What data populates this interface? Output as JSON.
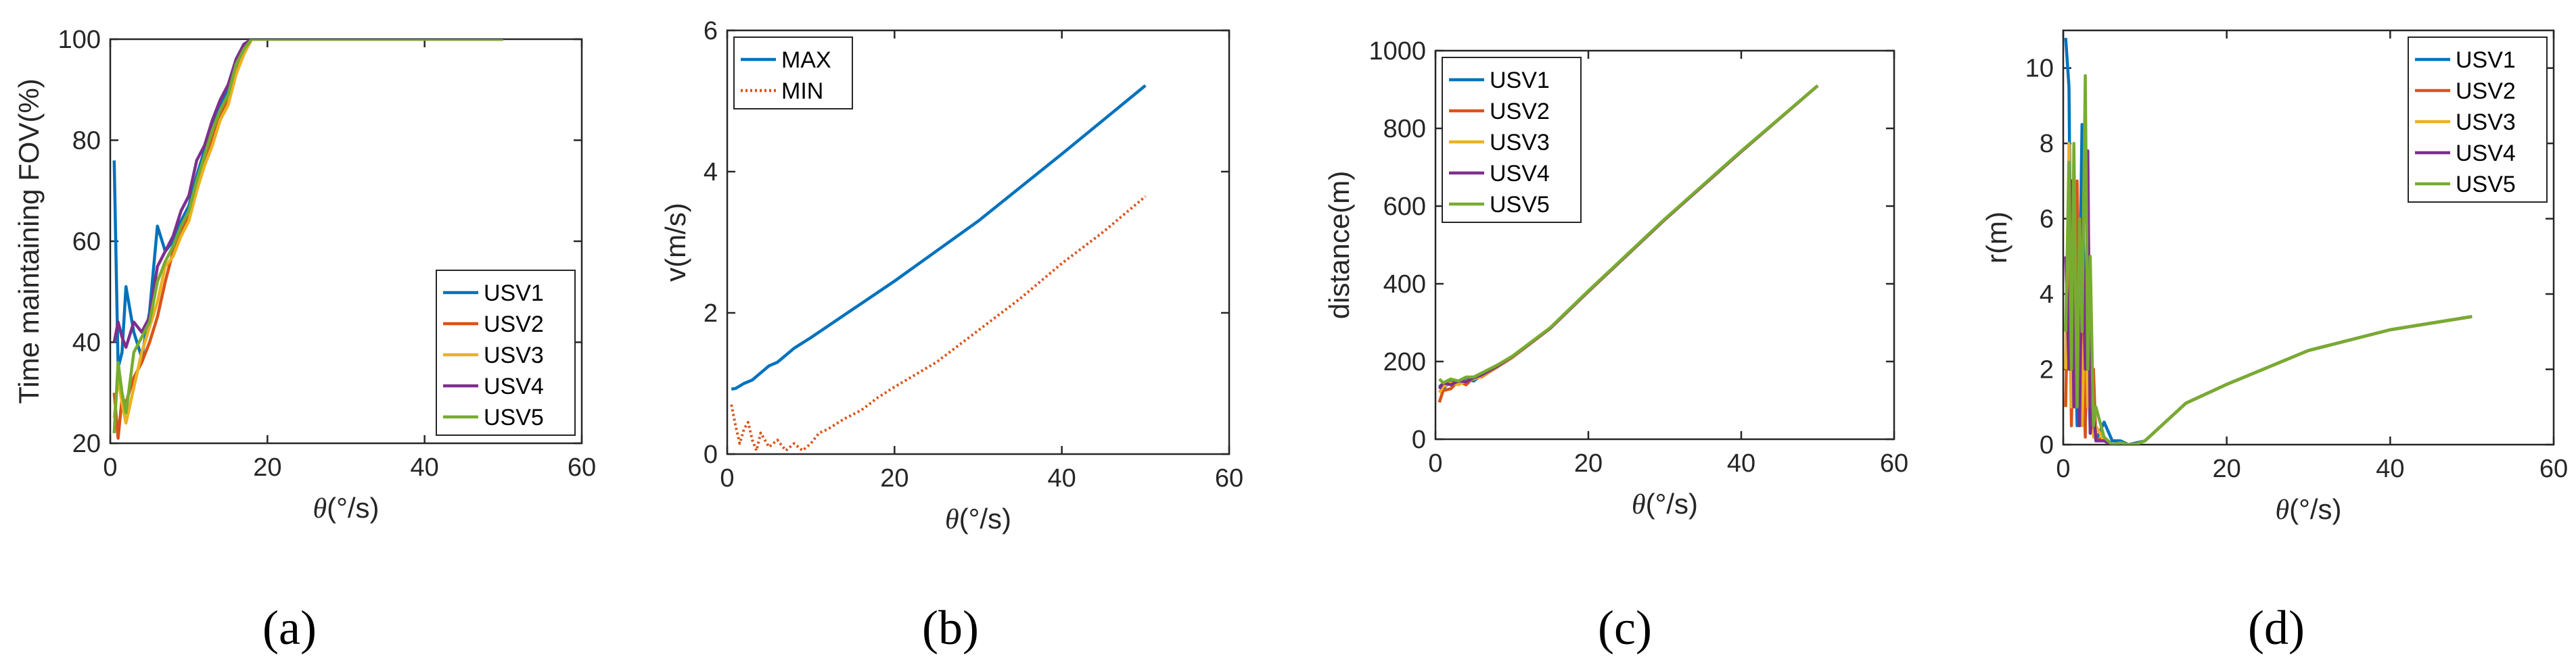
{
  "colors": {
    "USV1": "#0072BD",
    "USV2": "#D95319",
    "USV3": "#EDB120",
    "USV4": "#7E2F8E",
    "USV5": "#77AC30",
    "MAX": "#0072BD",
    "MIN": "#D95319"
  },
  "chart_data": [
    {
      "type": "line",
      "panel_label": "(a)",
      "xlabel_var": "θ",
      "xlabel_unit": "(°/s)",
      "ylabel": "Time maintaining FOV(%)",
      "xlim": [
        0,
        60
      ],
      "ylim": [
        20,
        100
      ],
      "xticks": [
        0,
        20,
        40,
        60
      ],
      "yticks": [
        20,
        40,
        60,
        80,
        100
      ],
      "legend_position": "bottom-right",
      "series": [
        {
          "name": "USV1",
          "color_key": "USV1",
          "x": [
            0.5,
            1,
            1.5,
            2,
            3,
            4,
            5,
            6,
            7,
            8,
            9,
            10,
            11,
            12,
            13,
            14,
            15,
            16,
            17,
            18,
            20,
            30,
            40,
            50
          ],
          "y": [
            76,
            35,
            38,
            51,
            42,
            37,
            46,
            63,
            58,
            60,
            64,
            67,
            73,
            78,
            83,
            87,
            90,
            96,
            99,
            100,
            100,
            100,
            100,
            100
          ]
        },
        {
          "name": "USV2",
          "color_key": "USV2",
          "x": [
            0.5,
            1,
            1.5,
            2,
            3,
            4,
            5,
            6,
            7,
            8,
            9,
            10,
            11,
            12,
            13,
            14,
            15,
            16,
            17,
            18,
            20,
            30,
            40,
            50
          ],
          "y": [
            30,
            21,
            29,
            28,
            33,
            36,
            40,
            45,
            52,
            58,
            62,
            65,
            71,
            76,
            80,
            85,
            88,
            94,
            98,
            100,
            100,
            100,
            100,
            100
          ]
        },
        {
          "name": "USV3",
          "color_key": "USV3",
          "x": [
            0.5,
            1,
            1.5,
            2,
            3,
            4,
            5,
            6,
            7,
            8,
            9,
            10,
            11,
            12,
            13,
            14,
            15,
            16,
            17,
            18,
            20,
            30,
            40,
            50
          ],
          "y": [
            25,
            33,
            28,
            24,
            31,
            38,
            43,
            48,
            55,
            57,
            61,
            64,
            70,
            75,
            79,
            84,
            87,
            93,
            97,
            100,
            100,
            100,
            100,
            100
          ]
        },
        {
          "name": "USV4",
          "color_key": "USV4",
          "x": [
            0.5,
            1,
            1.5,
            2,
            3,
            4,
            5,
            6,
            7,
            8,
            9,
            10,
            11,
            12,
            13,
            14,
            15,
            16,
            17,
            18,
            20,
            30,
            40,
            50
          ],
          "y": [
            40,
            44,
            41,
            39,
            44,
            42,
            45,
            55,
            58,
            61,
            66,
            69,
            76,
            79,
            84,
            88,
            91,
            96,
            99,
            100,
            100,
            100,
            100,
            100
          ]
        },
        {
          "name": "USV5",
          "color_key": "USV5",
          "x": [
            0.5,
            1,
            1.5,
            2,
            3,
            4,
            5,
            6,
            7,
            8,
            9,
            10,
            11,
            12,
            13,
            14,
            15,
            16,
            17,
            18,
            20,
            30,
            40,
            50
          ],
          "y": [
            22,
            36,
            30,
            26,
            38,
            41,
            44,
            52,
            56,
            59,
            63,
            66,
            72,
            77,
            82,
            86,
            89,
            95,
            98,
            100,
            100,
            100,
            100,
            100
          ]
        }
      ]
    },
    {
      "type": "line",
      "panel_label": "(b)",
      "xlabel_var": "θ",
      "xlabel_unit": "(°/s)",
      "ylabel": "v(m/s)",
      "xlim": [
        0,
        60
      ],
      "ylim": [
        0,
        6
      ],
      "xticks": [
        0,
        20,
        40,
        60
      ],
      "yticks": [
        0,
        2,
        4,
        6
      ],
      "legend_position": "top-left",
      "series": [
        {
          "name": "MAX",
          "color_key": "MAX",
          "style": "solid",
          "x": [
            0.5,
            1,
            2,
            3,
            4,
            5,
            6,
            8,
            10,
            15,
            20,
            30,
            40,
            50
          ],
          "y": [
            0.92,
            0.93,
            1.0,
            1.05,
            1.15,
            1.25,
            1.3,
            1.5,
            1.65,
            2.05,
            2.45,
            3.3,
            4.25,
            5.22
          ]
        },
        {
          "name": "MIN",
          "color_key": "MIN",
          "style": "dotted",
          "x": [
            0.5,
            1,
            1.5,
            2,
            2.5,
            3,
            3.5,
            4,
            5,
            6,
            7,
            8,
            9,
            10,
            11,
            12,
            14,
            16,
            18,
            20,
            25,
            30,
            35,
            40,
            45,
            50
          ],
          "y": [
            0.7,
            0.4,
            0.15,
            0.35,
            0.45,
            0.2,
            0.05,
            0.3,
            0.1,
            0.2,
            0.05,
            0.15,
            0.05,
            0.15,
            0.3,
            0.35,
            0.5,
            0.62,
            0.8,
            0.95,
            1.3,
            1.75,
            2.2,
            2.7,
            3.15,
            3.65
          ]
        }
      ]
    },
    {
      "type": "line",
      "panel_label": "(c)",
      "xlabel_var": "θ",
      "xlabel_unit": "(°/s)",
      "ylabel": "distance(m)",
      "xlim": [
        0,
        60
      ],
      "ylim": [
        0,
        1000
      ],
      "xticks": [
        0,
        20,
        40,
        60
      ],
      "yticks": [
        0,
        200,
        400,
        600,
        800,
        1000
      ],
      "legend_position": "top-left",
      "series": [
        {
          "name": "USV1",
          "color_key": "USV1",
          "x": [
            0.5,
            1,
            2,
            3,
            4,
            5,
            6,
            8,
            10,
            15,
            20,
            30,
            40,
            50
          ],
          "y": [
            140,
            130,
            150,
            145,
            155,
            150,
            165,
            185,
            210,
            285,
            380,
            565,
            740,
            910
          ]
        },
        {
          "name": "USV2",
          "color_key": "USV2",
          "x": [
            0.5,
            1,
            2,
            3,
            4,
            5,
            6,
            8,
            10,
            15,
            20,
            30,
            40,
            50
          ],
          "y": [
            95,
            125,
            130,
            150,
            140,
            160,
            160,
            185,
            210,
            285,
            380,
            565,
            740,
            910
          ]
        },
        {
          "name": "USV3",
          "color_key": "USV3",
          "x": [
            0.5,
            1,
            2,
            3,
            4,
            5,
            6,
            8,
            10,
            15,
            20,
            30,
            40,
            50
          ],
          "y": [
            120,
            135,
            145,
            140,
            150,
            155,
            162,
            186,
            211,
            286,
            381,
            566,
            741,
            910
          ]
        },
        {
          "name": "USV4",
          "color_key": "USV4",
          "x": [
            0.5,
            1,
            2,
            3,
            4,
            5,
            6,
            8,
            10,
            15,
            20,
            30,
            40,
            50
          ],
          "y": [
            130,
            145,
            140,
            150,
            148,
            158,
            165,
            187,
            212,
            286,
            381,
            566,
            741,
            910
          ]
        },
        {
          "name": "USV5",
          "color_key": "USV5",
          "x": [
            0.5,
            1,
            2,
            3,
            4,
            5,
            6,
            8,
            10,
            15,
            20,
            30,
            40,
            50
          ],
          "y": [
            155,
            145,
            155,
            150,
            160,
            160,
            170,
            190,
            213,
            287,
            382,
            567,
            742,
            910
          ]
        }
      ]
    },
    {
      "type": "line",
      "panel_label": "(d)",
      "xlabel_var": "θ",
      "xlabel_unit": "(°/s)",
      "ylabel": "r(m)",
      "xlim": [
        0,
        60
      ],
      "ylim": [
        0,
        11
      ],
      "xticks": [
        0,
        20,
        40,
        60
      ],
      "yticks": [
        0,
        2,
        4,
        6,
        8,
        10
      ],
      "legend_position": "top-right",
      "series": [
        {
          "name": "USV1",
          "color_key": "USV1",
          "x": [
            0.3,
            0.7,
            1,
            1.3,
            1.7,
            2,
            2.3,
            2.7,
            3,
            3.3,
            3.7,
            4,
            5,
            6,
            7,
            8,
            9,
            10,
            12,
            15,
            20,
            30,
            40,
            50
          ],
          "y": [
            10.8,
            9.5,
            2,
            5,
            0.5,
            4,
            8.5,
            0.5,
            3,
            0.3,
            1,
            0.1,
            0.6,
            0.1,
            0.1,
            0,
            0.05,
            0.1,
            0.5,
            1.1,
            1.6,
            2.5,
            3.05,
            3.4
          ]
        },
        {
          "name": "USV2",
          "color_key": "USV2",
          "x": [
            0.3,
            0.7,
            1,
            1.3,
            1.7,
            2,
            2.3,
            2.7,
            3,
            3.3,
            3.7,
            4,
            5,
            6,
            7,
            8,
            9,
            10,
            12,
            15,
            20,
            30,
            40,
            50
          ],
          "y": [
            1,
            6,
            0.5,
            4,
            7,
            1,
            3,
            0.2,
            7.5,
            0.5,
            2,
            0.1,
            0.2,
            0,
            0.05,
            0,
            0.02,
            0.1,
            0.5,
            1.1,
            1.6,
            2.5,
            3.05,
            3.4
          ]
        },
        {
          "name": "USV3",
          "color_key": "USV3",
          "x": [
            0.3,
            0.7,
            1,
            1.3,
            1.7,
            2,
            2.3,
            2.7,
            3,
            3.3,
            3.7,
            4,
            5,
            6,
            7,
            8,
            9,
            10,
            12,
            15,
            20,
            30,
            40,
            50
          ],
          "y": [
            2,
            8,
            1,
            6,
            2,
            5,
            0.5,
            4,
            1,
            3,
            0.2,
            0.5,
            0.1,
            0,
            0.05,
            0,
            0.02,
            0.1,
            0.5,
            1.1,
            1.6,
            2.5,
            3.05,
            3.4
          ]
        },
        {
          "name": "USV4",
          "color_key": "USV4",
          "x": [
            0.3,
            0.7,
            1,
            1.3,
            1.7,
            2,
            2.3,
            2.7,
            3,
            3.3,
            3.7,
            4,
            5,
            6,
            7,
            8,
            9,
            10,
            12,
            15,
            20,
            30,
            40,
            50
          ],
          "y": [
            5,
            2,
            7,
            1,
            4,
            0.5,
            6,
            2,
            7.8,
            0.3,
            1,
            0.1,
            0.1,
            0,
            0.02,
            0,
            0.02,
            0.1,
            0.5,
            1.1,
            1.6,
            2.5,
            3.05,
            3.4
          ]
        },
        {
          "name": "USV5",
          "color_key": "USV5",
          "x": [
            0.3,
            0.7,
            1,
            1.3,
            1.7,
            2,
            2.3,
            2.7,
            3,
            3.3,
            3.7,
            4,
            5,
            6,
            7,
            8,
            9,
            10,
            12,
            15,
            20,
            30,
            40,
            50
          ],
          "y": [
            3,
            7.5,
            2,
            8,
            1,
            6,
            3,
            9.8,
            2,
            5,
            0.5,
            1,
            0.2,
            0,
            0.05,
            0,
            0.02,
            0.1,
            0.5,
            1.1,
            1.6,
            2.5,
            3.05,
            3.4
          ]
        }
      ]
    }
  ]
}
